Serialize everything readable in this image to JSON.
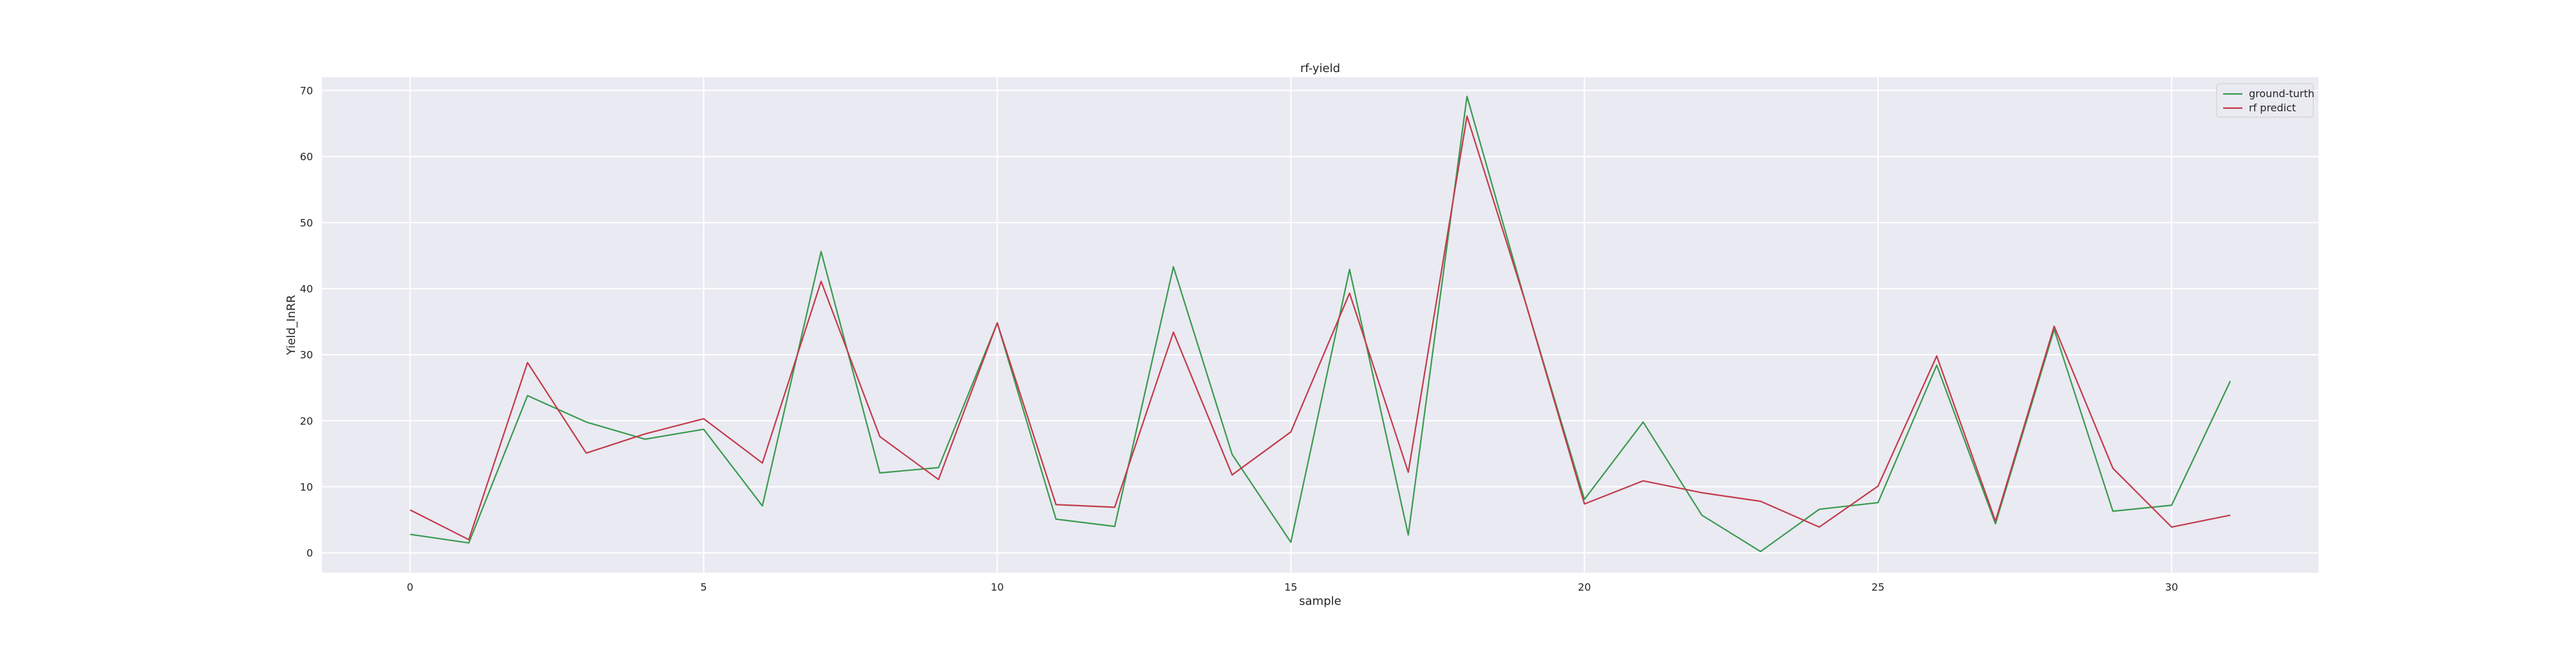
{
  "chart_data": {
    "type": "line",
    "title": "rf-yield",
    "xlabel": "sample",
    "ylabel": "Yield_InRR",
    "x": [
      0,
      1,
      2,
      3,
      4,
      5,
      6,
      7,
      8,
      9,
      10,
      11,
      12,
      13,
      14,
      15,
      16,
      17,
      18,
      19,
      20,
      21,
      22,
      23,
      24,
      25,
      26,
      27,
      28,
      29,
      30,
      31
    ],
    "xlim": [
      -1.5,
      32.5
    ],
    "ylim": [
      -3,
      72
    ],
    "xticks": [
      0,
      5,
      10,
      15,
      20,
      25,
      30
    ],
    "yticks": [
      0,
      10,
      20,
      30,
      40,
      50,
      60,
      70
    ],
    "grid": true,
    "legend_position": "top-right",
    "background_color": "#eaeaf2",
    "series": [
      {
        "name": "ground-turth",
        "color": "#3a9a4f",
        "values": [
          2.8,
          1.5,
          23.8,
          19.8,
          17.2,
          18.7,
          7.1,
          45.6,
          12.1,
          12.9,
          34.8,
          5.1,
          4.0,
          43.3,
          14.9,
          1.6,
          42.9,
          2.7,
          69.1,
          37.8,
          8.1,
          19.8,
          5.7,
          0.2,
          6.6,
          7.6,
          28.4,
          4.4,
          33.8,
          6.3,
          7.2,
          26.0
        ]
      },
      {
        "name": "rf predict",
        "color": "#c23b4b",
        "values": [
          6.5,
          2.0,
          28.8,
          15.1,
          18.0,
          20.3,
          13.6,
          41.1,
          17.6,
          11.1,
          34.8,
          7.3,
          6.9,
          33.4,
          11.8,
          18.3,
          39.3,
          12.2,
          66.1,
          37.8,
          7.4,
          10.9,
          9.1,
          7.8,
          3.9,
          10.1,
          29.8,
          4.8,
          34.3,
          12.8,
          3.9,
          5.7
        ]
      }
    ]
  }
}
